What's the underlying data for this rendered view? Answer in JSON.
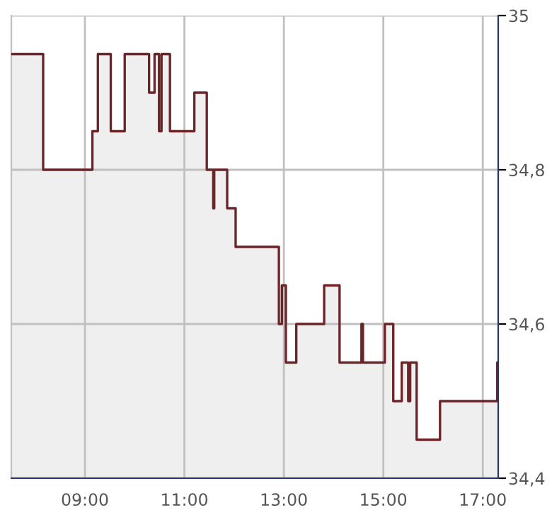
{
  "chart_data": {
    "type": "step",
    "x": [
      7.52,
      8.16,
      9.15,
      9.26,
      9.52,
      9.8,
      10.29,
      10.4,
      10.49,
      10.54,
      10.71,
      11.2,
      11.45,
      11.58,
      11.6,
      11.86,
      12.03,
      12.9,
      12.96,
      13.04,
      13.25,
      13.81,
      14.12,
      14.56,
      14.59,
      15.03,
      15.2,
      15.37,
      15.5,
      15.54,
      15.67,
      16.14,
      17.29
    ],
    "series": [
      {
        "type": "area",
        "color": "#efefef",
        "values": [
          34.95,
          34.8,
          34.85,
          34.95,
          34.85,
          34.95,
          34.9,
          34.95,
          34.85,
          34.95,
          34.85,
          34.9,
          34.8,
          34.75,
          34.8,
          34.75,
          34.7,
          34.6,
          34.65,
          34.55,
          34.6,
          34.65,
          34.55,
          34.6,
          34.55,
          34.6,
          34.5,
          34.55,
          34.5,
          34.55,
          34.45,
          34.5,
          34.55
        ]
      },
      {
        "color": "#6b2428",
        "values": [
          34.95,
          34.8,
          34.85,
          34.95,
          34.85,
          34.95,
          34.9,
          34.95,
          34.85,
          34.95,
          34.85,
          34.9,
          34.8,
          34.75,
          34.8,
          34.75,
          34.7,
          34.6,
          34.65,
          34.55,
          34.6,
          34.65,
          34.55,
          34.6,
          34.55,
          34.6,
          34.5,
          34.55,
          34.5,
          34.55,
          34.45,
          34.5,
          34.55
        ]
      }
    ],
    "xlim": [
      7.52,
      17.31
    ],
    "xticks": [
      {
        "value": 9,
        "label": "09:00"
      },
      {
        "value": 11,
        "label": "11:00"
      },
      {
        "value": 13,
        "label": "13:00"
      },
      {
        "value": 15,
        "label": "15:00"
      },
      {
        "value": 17,
        "label": "17:00"
      }
    ],
    "ylim": [
      34.4,
      35.0
    ],
    "yticks": [
      {
        "value": 34.4,
        "label": "34,4"
      },
      {
        "value": 34.6,
        "label": "34,6"
      },
      {
        "value": 34.8,
        "label": "34,8"
      },
      {
        "value": 35.0,
        "label": "35"
      }
    ],
    "grid": true
  }
}
